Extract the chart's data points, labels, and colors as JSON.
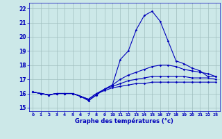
{
  "xlabel": "Graphe des températures (°c)",
  "background_color": "#cce8e8",
  "grid_color": "#a0bfbf",
  "line_color": "#0000bb",
  "ylim": [
    14.75,
    22.4
  ],
  "xlim": [
    -0.5,
    23.5
  ],
  "yticks": [
    15,
    16,
    17,
    18,
    19,
    20,
    21,
    22
  ],
  "xticks": [
    0,
    1,
    2,
    3,
    4,
    5,
    6,
    7,
    8,
    9,
    10,
    11,
    12,
    13,
    14,
    15,
    16,
    17,
    18,
    19,
    20,
    21,
    22,
    23
  ],
  "hours": [
    0,
    1,
    2,
    3,
    4,
    5,
    6,
    7,
    8,
    9,
    10,
    11,
    12,
    13,
    14,
    15,
    16,
    17,
    18,
    19,
    20,
    21,
    22,
    23
  ],
  "temp_actual": [
    16.1,
    16.0,
    15.9,
    16.0,
    16.0,
    16.0,
    15.8,
    15.5,
    15.9,
    16.3,
    16.6,
    18.4,
    19.0,
    20.5,
    21.5,
    21.8,
    21.1,
    19.7,
    18.3,
    18.1,
    17.8,
    17.6,
    17.2,
    17.2
  ],
  "temp_line2": [
    16.1,
    16.0,
    15.9,
    16.0,
    16.0,
    16.0,
    15.8,
    15.5,
    15.9,
    16.3,
    16.6,
    17.0,
    17.3,
    17.5,
    17.7,
    17.9,
    18.0,
    18.0,
    17.9,
    17.7,
    17.6,
    17.5,
    17.4,
    17.2
  ],
  "temp_line3": [
    16.1,
    16.0,
    15.9,
    16.0,
    16.0,
    16.0,
    15.8,
    15.6,
    16.0,
    16.3,
    16.5,
    16.7,
    16.9,
    17.0,
    17.1,
    17.2,
    17.2,
    17.2,
    17.2,
    17.2,
    17.1,
    17.1,
    17.1,
    17.0
  ],
  "temp_line4": [
    16.1,
    16.0,
    15.9,
    16.0,
    16.0,
    16.0,
    15.8,
    15.6,
    16.0,
    16.2,
    16.4,
    16.5,
    16.6,
    16.7,
    16.7,
    16.8,
    16.8,
    16.8,
    16.8,
    16.8,
    16.8,
    16.8,
    16.8,
    16.8
  ]
}
